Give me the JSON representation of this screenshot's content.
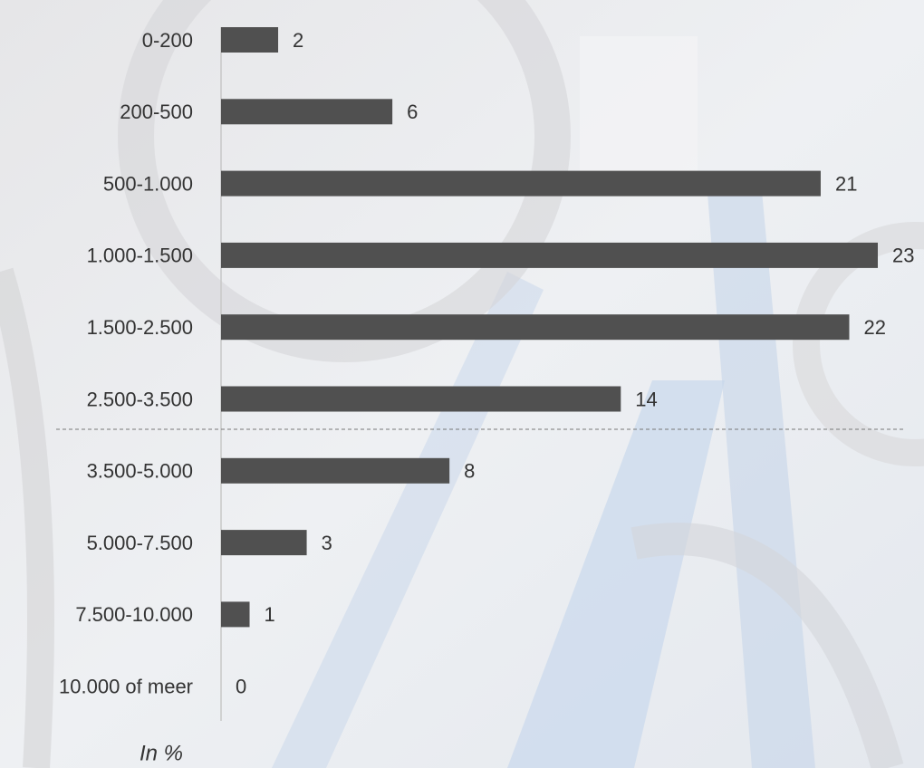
{
  "chart_data": {
    "type": "bar",
    "orientation": "horizontal",
    "categories": [
      "0-200",
      "200-500",
      "500-1.000",
      "1.000-1.500",
      "1.500-2.500",
      "2.500-3.500",
      "3.500-5.000",
      "5.000-7.500",
      "7.500-10.000",
      "10.000 of meer"
    ],
    "values": [
      2,
      6,
      21,
      23,
      22,
      14,
      8,
      3,
      1,
      0
    ],
    "color": "#505050",
    "note": "In %"
  }
}
